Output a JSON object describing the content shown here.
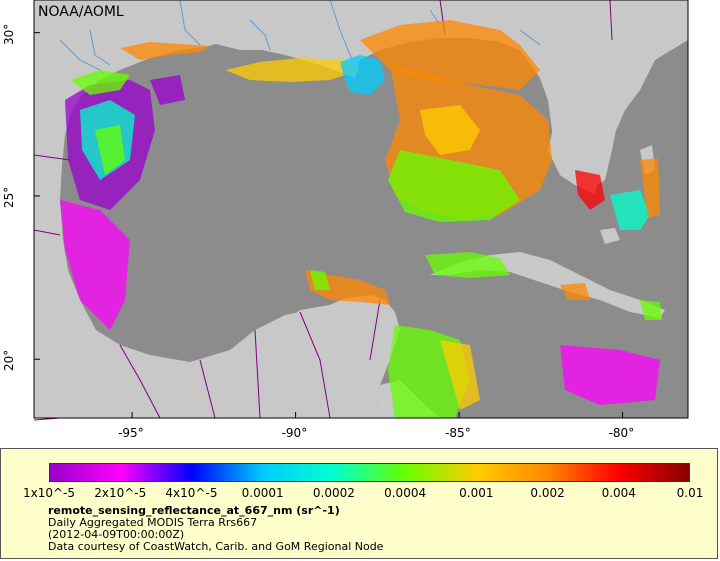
{
  "map": {
    "brand": "NOAA/AOML",
    "lat_labels": [
      {
        "text": "30°",
        "lat": 30
      },
      {
        "text": "25°",
        "lat": 25
      },
      {
        "text": "20°",
        "lat": 20
      }
    ],
    "lon_labels": [
      {
        "text": "-95°",
        "lon": -95
      },
      {
        "text": "-90°",
        "lon": -90
      },
      {
        "text": "-85°",
        "lon": -85
      },
      {
        "text": "-80°",
        "lon": -80
      }
    ],
    "extent": {
      "lon_min": -98,
      "lon_max": -78,
      "lat_min": 18.2,
      "lat_max": 31
    },
    "colors": {
      "ocean": "#8c8c8c",
      "land": "#c8c8c8",
      "border": "#800080",
      "river": "#6699cc"
    }
  },
  "legend": {
    "tick_labels": [
      "1x10^-5",
      "2x10^-5",
      "4x10^-5",
      "0.0001",
      "0.0002",
      "0.0004",
      "0.001",
      "0.002",
      "0.004",
      "0.01"
    ],
    "colors": [
      "#9900cc",
      "#ff00ff",
      "#0000ff",
      "#00ccff",
      "#00ffcc",
      "#66ff00",
      "#ffcc00",
      "#ff8800",
      "#ff0000",
      "#880000"
    ],
    "variable": "remote_sensing_reflectance_at_667_nm (sr^-1)",
    "line1": "Daily Aggregated MODIS Terra Rrs667",
    "line2": "(2012-04-09T00:00:00Z)",
    "line3": "Data courtesy of CoastWatch, Carib. and GoM Regional Node"
  }
}
